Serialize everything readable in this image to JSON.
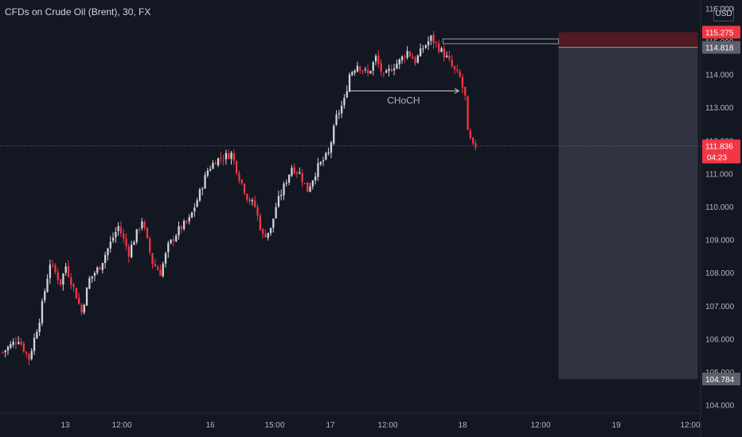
{
  "header": {
    "title": "CFDs on Crude Oil (Brent), 30, FX",
    "currency": "USD"
  },
  "colors": {
    "background": "#131722",
    "up": "#d1d4dc",
    "down": "#f23645",
    "stop_zone": "#5c1b22",
    "target_zone": "#363a45",
    "last_price": "#f23645"
  },
  "chart_data": {
    "type": "candlestick",
    "title": "CFDs on Crude Oil (Brent), 30, FX",
    "interval": "30",
    "ylim": [
      103.75,
      116.25
    ],
    "y_ticks": [
      104,
      105,
      106,
      107,
      108,
      109,
      110,
      111,
      112,
      113,
      114,
      115,
      116
    ],
    "y_tick_labels": [
      "104.000",
      "105.000",
      "106.000",
      "107.000",
      "108.000",
      "109.000",
      "110.000",
      "111.000",
      "112.000",
      "113.000",
      "114.000",
      "115.000",
      "116.000"
    ],
    "x_tick_labels": [
      "13",
      "12:00",
      "16",
      "15:00",
      "17",
      "12:00",
      "18",
      "12:00",
      "19",
      "12:00"
    ],
    "close_path": [
      [
        0,
        105.6
      ],
      [
        6,
        106.0
      ],
      [
        10,
        105.4
      ],
      [
        14,
        106.6
      ],
      [
        18,
        108.3
      ],
      [
        22,
        107.7
      ],
      [
        24,
        108.2
      ],
      [
        28,
        107.3
      ],
      [
        30,
        106.8
      ],
      [
        33,
        107.8
      ],
      [
        37,
        108.2
      ],
      [
        41,
        108.9
      ],
      [
        44,
        109.4
      ],
      [
        48,
        108.6
      ],
      [
        53,
        109.6
      ],
      [
        57,
        108.3
      ],
      [
        60,
        108.0
      ],
      [
        63,
        108.8
      ],
      [
        67,
        109.3
      ],
      [
        71,
        109.6
      ],
      [
        74,
        110.2
      ],
      [
        78,
        111.1
      ],
      [
        81,
        111.4
      ],
      [
        84,
        111.5
      ],
      [
        87,
        111.6
      ],
      [
        90,
        110.9
      ],
      [
        93,
        110.3
      ],
      [
        96,
        110.0
      ],
      [
        99,
        109.1
      ],
      [
        102,
        109.3
      ],
      [
        104,
        110.0
      ],
      [
        107,
        110.6
      ],
      [
        110,
        111.2
      ],
      [
        113,
        111.0
      ],
      [
        116,
        110.5
      ],
      [
        120,
        111.2
      ],
      [
        124,
        111.6
      ],
      [
        127,
        112.7
      ],
      [
        130,
        113.2
      ],
      [
        132,
        114.0
      ],
      [
        135,
        114.3
      ],
      [
        139,
        114.0
      ],
      [
        142,
        114.5
      ],
      [
        145,
        113.9
      ],
      [
        148,
        114.2
      ],
      [
        151,
        114.4
      ],
      [
        154,
        114.7
      ],
      [
        157,
        114.4
      ],
      [
        160,
        114.8
      ],
      [
        163,
        115.1
      ],
      [
        166,
        114.8
      ],
      [
        169,
        114.5
      ],
      [
        172,
        114.1
      ],
      [
        174,
        113.9
      ],
      [
        176,
        113.3
      ],
      [
        177,
        112.2
      ],
      [
        179,
        111.8
      ],
      [
        180,
        111.84
      ]
    ],
    "choch": {
      "label": "CHoCH",
      "price": 113.5,
      "x_start": 132,
      "x_end": 174
    },
    "level_line": {
      "price": 115.0,
      "x_start": 168,
      "x_end": 212
    },
    "position": {
      "type": "short",
      "entry": 114.818,
      "stop": 115.275,
      "target": 104.784,
      "x_start": 212,
      "x_end": 265
    },
    "price_tags": [
      {
        "label": "115.275",
        "price": 115.275,
        "color": "#f23645",
        "text_color": "#ffffff"
      },
      {
        "label": "114.818",
        "price": 114.818,
        "color": "#5d606b",
        "text_color": "#ffffff"
      },
      {
        "label": "104.784",
        "price": 104.784,
        "color": "#5d606b",
        "text_color": "#ffffff"
      }
    ],
    "last_price": {
      "value": 111.836,
      "label": "111.836",
      "countdown": "04:23",
      "color": "#f23645"
    }
  }
}
